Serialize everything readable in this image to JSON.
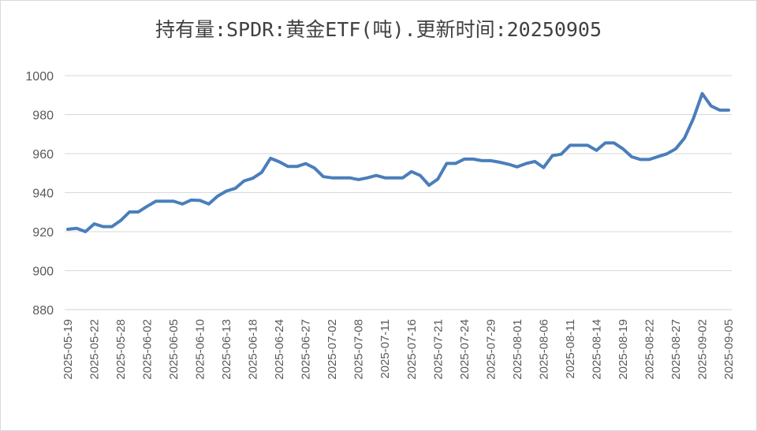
{
  "chart_data": {
    "type": "line",
    "title": "持有量:SPDR:黄金ETF(吨).更新时间:20250905",
    "xlabel": "",
    "ylabel": "",
    "ylim": [
      880,
      1000
    ],
    "yticks": [
      880,
      900,
      920,
      940,
      960,
      980,
      1000
    ],
    "grid": true,
    "legend": "none",
    "line_color": "#4a7ebb",
    "grid_color": "#d9d9d9",
    "x_tick_labels": [
      "2025-05-19",
      "2025-05-22",
      "2025-05-28",
      "2025-06-02",
      "2025-06-05",
      "2025-06-10",
      "2025-06-13",
      "2025-06-18",
      "2025-06-24",
      "2025-06-27",
      "2025-07-02",
      "2025-07-08",
      "2025-07-11",
      "2025-07-16",
      "2025-07-21",
      "2025-07-24",
      "2025-07-29",
      "2025-08-01",
      "2025-08-06",
      "2025-08-11",
      "2025-08-14",
      "2025-08-19",
      "2025-08-22",
      "2025-08-27",
      "2025-09-02",
      "2025-09-05"
    ],
    "values": [
      921.2,
      921.7,
      920.0,
      924.0,
      922.6,
      922.6,
      925.7,
      930.1,
      930.1,
      933.0,
      935.6,
      935.6,
      935.6,
      934.2,
      936.2,
      936.0,
      934.2,
      938.2,
      940.8,
      942.2,
      946.0,
      947.4,
      950.4,
      957.6,
      955.8,
      953.4,
      953.4,
      954.9,
      952.6,
      948.2,
      947.6,
      947.6,
      947.6,
      946.7,
      947.6,
      948.8,
      947.6,
      947.6,
      947.6,
      950.8,
      948.8,
      943.8,
      947.0,
      955.0,
      955.0,
      957.2,
      957.2,
      956.4,
      956.4,
      955.6,
      954.6,
      953.2,
      954.9,
      956.0,
      952.9,
      959.0,
      959.7,
      964.3,
      964.3,
      964.3,
      961.7,
      965.5,
      965.5,
      962.5,
      958.4,
      957.0,
      957.0,
      958.5,
      959.9,
      962.5,
      968.0,
      978.0,
      990.8,
      984.5,
      982.3,
      982.3
    ]
  }
}
